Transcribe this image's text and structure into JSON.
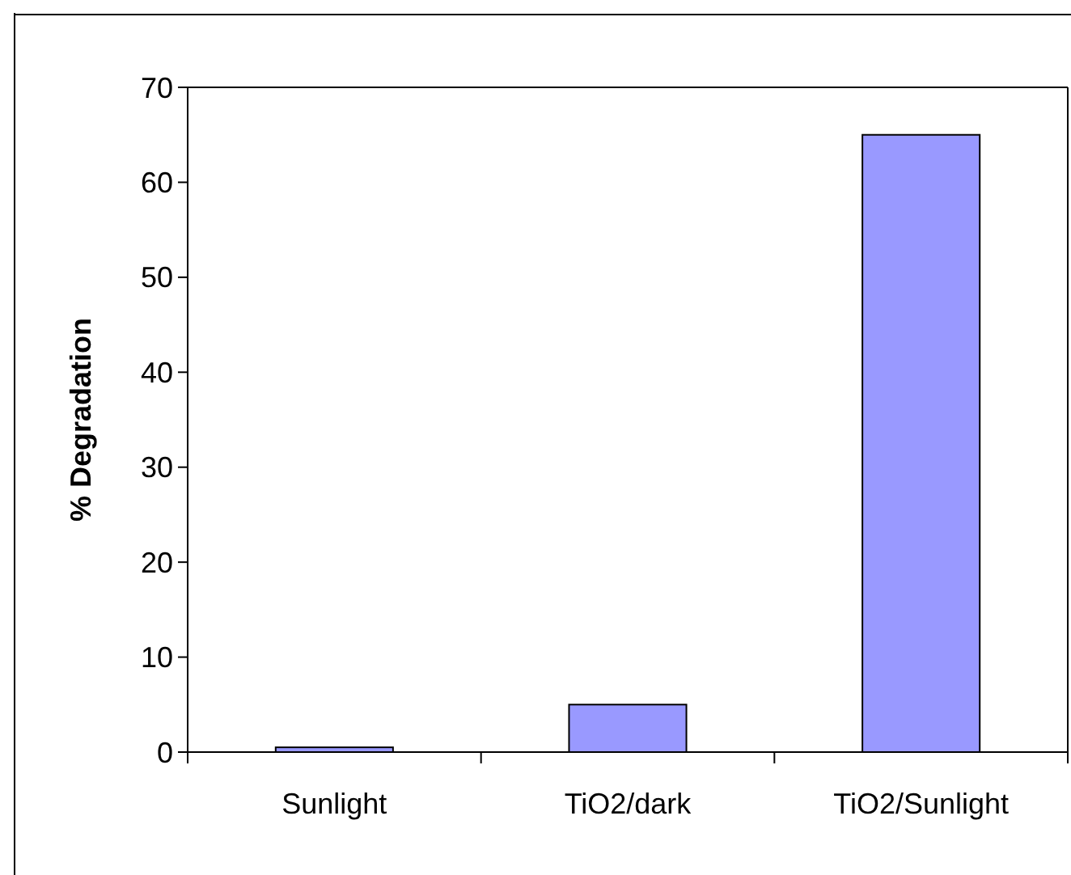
{
  "chart_data": {
    "type": "bar",
    "ylabel": "% Degradation",
    "categories": [
      "Sunlight",
      "TiO2/dark",
      "TiO2/Sunlight"
    ],
    "values": [
      0.5,
      5,
      65
    ],
    "color": "#9999ff",
    "ylim": [
      0,
      70
    ],
    "yticks": [
      0,
      10,
      20,
      30,
      40,
      50,
      60,
      70
    ],
    "grid": false
  }
}
